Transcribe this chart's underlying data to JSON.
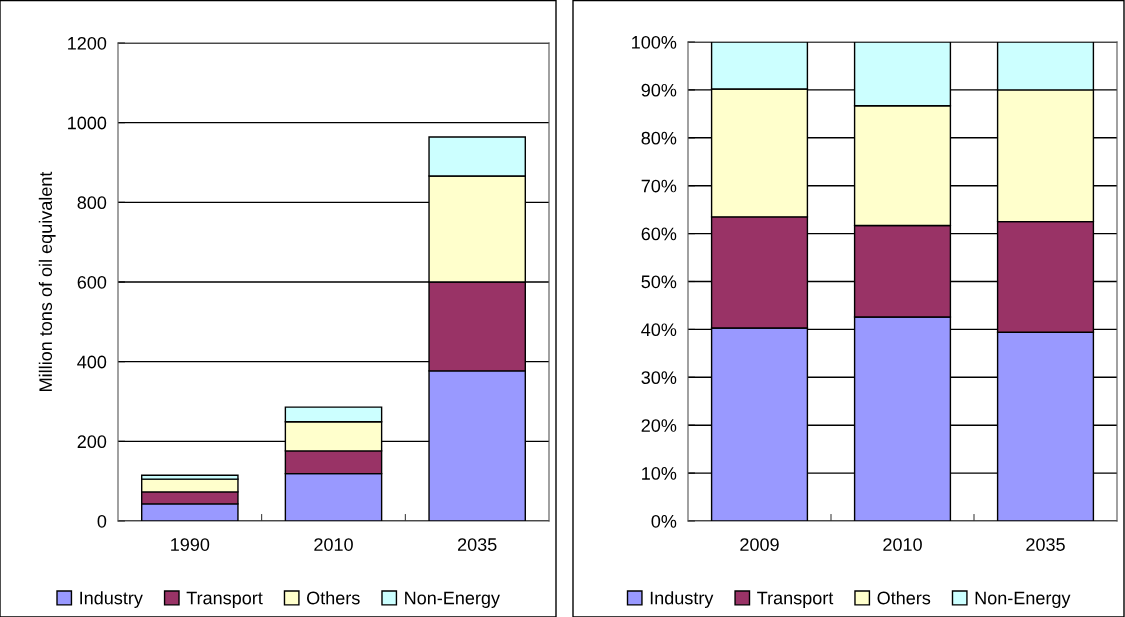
{
  "chart_data": [
    {
      "type": "bar",
      "stacked": true,
      "categories": [
        "1990",
        "2010",
        "2035"
      ],
      "ylabel": "Million tons of oil equivalent",
      "ylim": [
        0,
        1200
      ],
      "yticks": [
        0,
        200,
        400,
        600,
        800,
        1000,
        1200
      ],
      "grid": "y",
      "legend": "bottom",
      "series": [
        {
          "name": "Industry",
          "color": "#9999ff",
          "values": [
            43,
            119,
            377
          ]
        },
        {
          "name": "Transport",
          "color": "#993366",
          "values": [
            30,
            57,
            223
          ]
        },
        {
          "name": "Others",
          "color": "#ffffcc",
          "values": [
            32,
            73,
            266
          ]
        },
        {
          "name": "Non-Energy",
          "color": "#ccffff",
          "values": [
            10,
            37,
            98
          ]
        }
      ]
    },
    {
      "type": "bar",
      "stacked": true,
      "categories": [
        "2009",
        "2010",
        "2035"
      ],
      "ylim": [
        0,
        100
      ],
      "yticks": [
        {
          "value": 0,
          "label": "0%"
        },
        {
          "value": 10,
          "label": "10%"
        },
        {
          "value": 20,
          "label": "20%"
        },
        {
          "value": 30,
          "label": "30%"
        },
        {
          "value": 40,
          "label": "40%"
        },
        {
          "value": 50,
          "label": "50%"
        },
        {
          "value": 60,
          "label": "60%"
        },
        {
          "value": 70,
          "label": "70%"
        },
        {
          "value": 80,
          "label": "80%"
        },
        {
          "value": 90,
          "label": "90%"
        },
        {
          "value": 100,
          "label": "100%"
        }
      ],
      "grid": "y",
      "legend": "bottom",
      "series": [
        {
          "name": "Industry",
          "color": "#9999ff",
          "values": [
            40.3,
            42.6,
            39.4
          ]
        },
        {
          "name": "Transport",
          "color": "#993366",
          "values": [
            23.2,
            19.1,
            23.1
          ]
        },
        {
          "name": "Others",
          "color": "#ffffcc",
          "values": [
            26.7,
            25.0,
            27.5
          ]
        },
        {
          "name": "Non-Energy",
          "color": "#ccffff",
          "values": [
            9.8,
            13.3,
            10.0
          ]
        }
      ]
    }
  ]
}
